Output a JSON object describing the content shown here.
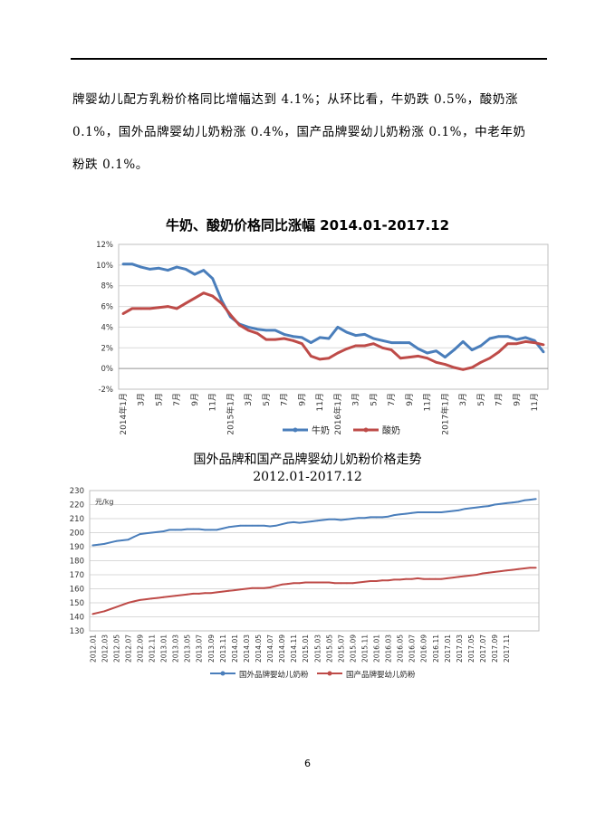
{
  "paragraph": {
    "lines": [
      "牌婴幼儿配方乳粉价格同比增幅达到 4.1%；从环比看，牛奶跌 0.5%，酸奶涨",
      "0.1%，国外品牌婴幼儿奶粉涨 0.4%，国产品牌婴幼儿奶粉涨 0.1%，中老年奶",
      "粉跌 0.1%。"
    ]
  },
  "page_number": "6",
  "chart_data": [
    {
      "type": "line",
      "title": "牛奶、酸奶价格同比涨幅 2014.01-2017.12",
      "yticks": [
        "12%",
        "10%",
        "8%",
        "6%",
        "4%",
        "2%",
        "0%",
        "-2%"
      ],
      "ylim": [
        -2,
        12
      ],
      "xticks": [
        "2014年1月",
        "3月",
        "5月",
        "7月",
        "9月",
        "11月",
        "2015年1月",
        "3月",
        "5月",
        "7月",
        "9月",
        "11月",
        "2016年1月",
        "3月",
        "5月",
        "7月",
        "9月",
        "11月",
        "2017年1月",
        "3月",
        "5月",
        "7月",
        "9月",
        "11月"
      ],
      "legend_position": "bottom",
      "grid": true,
      "series": [
        {
          "name": "牛奶",
          "color": "#4a7ebb",
          "values": [
            10.1,
            10.1,
            9.8,
            9.6,
            9.7,
            9.5,
            9.8,
            9.6,
            9.1,
            9.5,
            8.7,
            6.6,
            5.0,
            4.3,
            4.0,
            3.8,
            3.7,
            3.7,
            3.3,
            3.1,
            3.0,
            2.5,
            3.0,
            2.9,
            4.0,
            3.5,
            3.2,
            3.3,
            2.9,
            2.7,
            2.5,
            2.5,
            2.5,
            1.9,
            1.5,
            1.7,
            1.1,
            1.8,
            2.6,
            1.8,
            2.2,
            2.9,
            3.1,
            3.1,
            2.8,
            3.0,
            2.7,
            1.6
          ]
        },
        {
          "name": "酸奶",
          "color": "#be4b48",
          "values": [
            5.3,
            5.8,
            5.8,
            5.8,
            5.9,
            6.0,
            5.8,
            6.3,
            6.8,
            7.3,
            7.0,
            6.3,
            5.2,
            4.2,
            3.7,
            3.4,
            2.8,
            2.8,
            2.9,
            2.7,
            2.4,
            1.2,
            0.9,
            1.0,
            1.5,
            1.9,
            2.2,
            2.2,
            2.4,
            2.0,
            1.8,
            1.0,
            1.1,
            1.2,
            1.0,
            0.6,
            0.4,
            0.1,
            -0.1,
            0.1,
            0.6,
            1.0,
            1.6,
            2.4,
            2.4,
            2.6,
            2.5,
            2.3
          ]
        }
      ]
    },
    {
      "type": "line",
      "title": "国外品牌和国产品牌婴幼儿奶粉价格走势",
      "subtitle": "2012.01-2017.12",
      "ylabel": "元/kg",
      "ylim": [
        130,
        230
      ],
      "yticks": [
        "230",
        "220",
        "210",
        "200",
        "190",
        "180",
        "170",
        "160",
        "150",
        "140",
        "130"
      ],
      "xticks": [
        "2012.01",
        "2012.03",
        "2012.05",
        "2012.07",
        "2012.09",
        "2012.11",
        "2013.01",
        "2013.03",
        "2013.05",
        "2013.07",
        "2013.09",
        "2013.11",
        "2014.01",
        "2014.03",
        "2014.05",
        "2014.07",
        "2014.09",
        "2014.11",
        "2015.01",
        "2015.03",
        "2015.05",
        "2015.07",
        "2015.09",
        "2015.11",
        "2016.01",
        "2016.03",
        "2016.05",
        "2016.07",
        "2016.09",
        "2016.11",
        "2017.01",
        "2017.03",
        "2017.05",
        "2017.07",
        "2017.09",
        "2017.11"
      ],
      "legend_position": "bottom",
      "grid": true,
      "series": [
        {
          "name": "国外品牌婴幼儿奶粉",
          "color": "#4a7ebb",
          "values": [
            191,
            191.5,
            192,
            193,
            194,
            194.5,
            195,
            197,
            199,
            199.5,
            200,
            200.5,
            201,
            202,
            202,
            202,
            202.5,
            202.5,
            202.5,
            202,
            202,
            202,
            203,
            204,
            204.5,
            205,
            205,
            205,
            205,
            205,
            204.5,
            205,
            206,
            207,
            207.5,
            207,
            207.5,
            208,
            208.5,
            209,
            209.5,
            209.5,
            209,
            209.5,
            210,
            210.5,
            210.5,
            211,
            211,
            211,
            211.5,
            212.5,
            213,
            213.5,
            214,
            214.5,
            214.5,
            214.5,
            214.5,
            214.5,
            215,
            215.5,
            216,
            217,
            217.5,
            218,
            218.5,
            219,
            220,
            220.5,
            221,
            221.5,
            222,
            223,
            223.5,
            224
          ]
        },
        {
          "name": "国产品牌婴幼儿奶粉",
          "color": "#be4b48",
          "values": [
            142,
            143,
            144,
            145.5,
            147,
            148.5,
            150,
            151,
            152,
            152.5,
            153,
            153.5,
            154,
            154.5,
            155,
            155.5,
            156,
            156.5,
            156.5,
            157,
            157,
            157.5,
            158,
            158.5,
            159,
            159.5,
            160,
            160.5,
            160.5,
            160.5,
            161,
            162,
            163,
            163.5,
            164,
            164,
            164.5,
            164.5,
            164.5,
            164.5,
            164.5,
            164,
            164,
            164,
            164,
            164.5,
            165,
            165.5,
            165.5,
            166,
            166,
            166.5,
            166.5,
            167,
            167,
            167.5,
            167,
            167,
            167,
            167,
            167.5,
            168,
            168.5,
            169,
            169.5,
            170,
            171,
            171.5,
            172,
            172.5,
            173,
            173.5,
            174,
            174.5,
            175,
            175
          ]
        }
      ]
    }
  ]
}
